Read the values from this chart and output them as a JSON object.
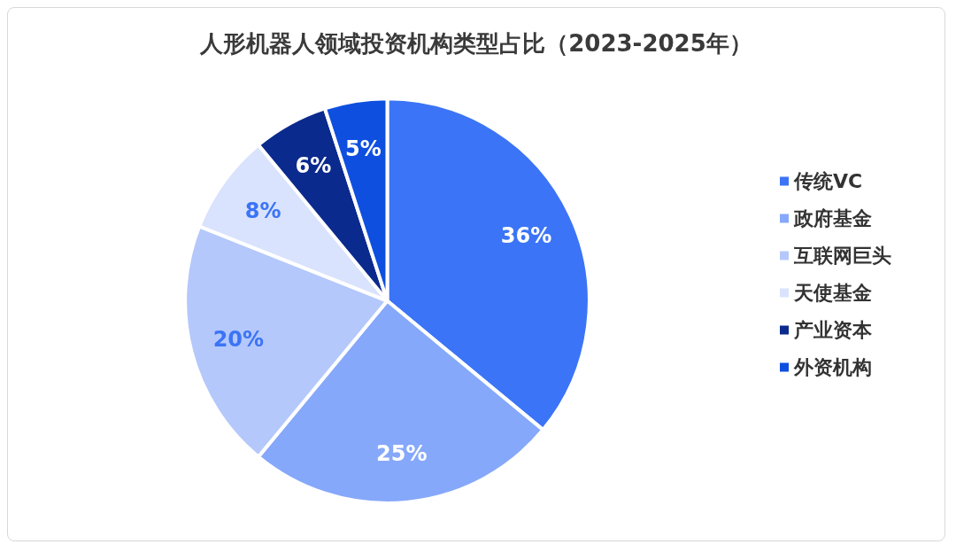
{
  "chart_data": {
    "type": "pie",
    "title": "人形机器人领域投资机构类型占比（2023-2025年）",
    "categories": [
      "传统VC",
      "政府基金",
      "互联网巨头",
      "天使基金",
      "产业资本",
      "外资机构"
    ],
    "values": [
      36,
      25,
      20,
      8,
      6,
      5
    ],
    "colors": [
      "#3b74f6",
      "#86a8fa",
      "#b4c8fb",
      "#d9e3fd",
      "#0b2a8e",
      "#0e4fe0"
    ],
    "value_labels": [
      "36%",
      "25%",
      "20%",
      "8%",
      "6%",
      "5%"
    ],
    "legend": "right"
  }
}
